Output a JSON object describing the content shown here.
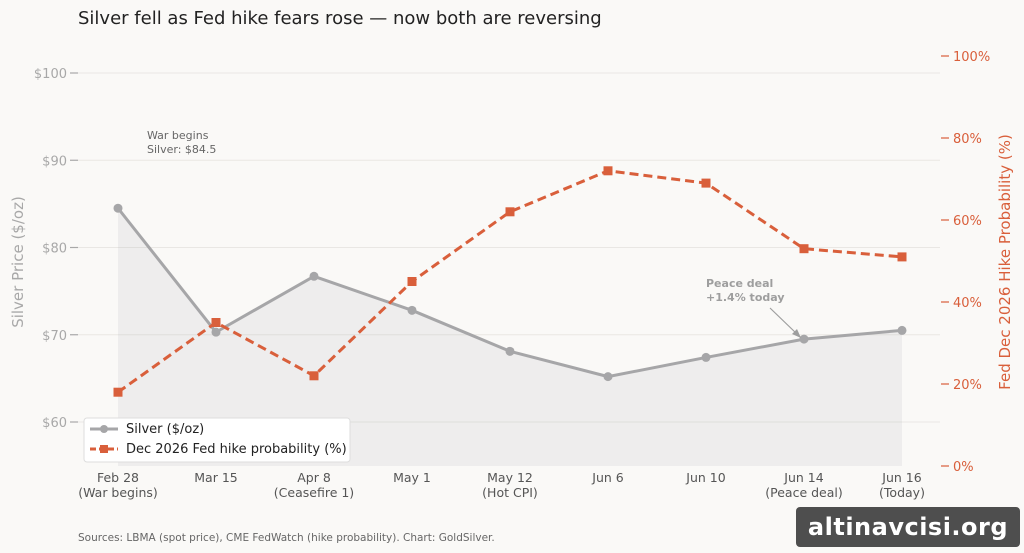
{
  "title": "Silver fell as Fed hike fears rose — now both are reversing",
  "source_note": "Sources: LBMA (spot price), CME FedWatch (hike probability). Chart: GoldSilver.",
  "watermark": "altinavcisi.org",
  "annotations": {
    "war_line1": "War begins",
    "war_line2": "Silver: $84.5",
    "peace_line1": "Peace deal",
    "peace_line2": "+1.4% today"
  },
  "colors": {
    "silver": "#a6a6a8",
    "fed": "#d95f3b",
    "background": "#faf9f7"
  },
  "chart_data": {
    "type": "line",
    "title": "Silver fell as Fed hike fears rose — now both are reversing",
    "categories": [
      [
        "Feb 28",
        "(War begins)"
      ],
      [
        "Mar 15",
        ""
      ],
      [
        "Apr 8",
        "(Ceasefire 1)"
      ],
      [
        "May 1",
        ""
      ],
      [
        "May 12",
        "(Hot CPI)"
      ],
      [
        "Jun 6",
        ""
      ],
      [
        "Jun 10",
        ""
      ],
      [
        "Jun 14",
        "(Peace deal)"
      ],
      [
        "Jun 16",
        "(Today)"
      ]
    ],
    "ylabel_left": "Silver Price ($/oz)",
    "ylabel_right": "Fed Dec 2026 Hike Probability (%)",
    "ylim_left": [
      55,
      102
    ],
    "ylim_right": [
      0,
      100
    ],
    "yticks_left": [
      "$60",
      "$70",
      "$80",
      "$90",
      "$100"
    ],
    "yticks_left_values": [
      60,
      70,
      80,
      90,
      100
    ],
    "yticks_right": [
      "0%",
      "20%",
      "40%",
      "60%",
      "80%",
      "100%"
    ],
    "yticks_right_values": [
      0,
      20,
      40,
      60,
      80,
      100
    ],
    "grid": true,
    "legend_position": "bottom-left",
    "series": [
      {
        "name": "Silver ($/oz)",
        "axis": "left",
        "style": "solid-circle",
        "values": [
          84.5,
          70.3,
          76.7,
          72.8,
          68.1,
          65.2,
          67.4,
          69.5,
          70.5
        ]
      },
      {
        "name": "Dec 2026 Fed hike probability (%)",
        "axis": "right",
        "style": "dashed-square",
        "values": [
          18,
          35,
          22,
          45,
          62,
          72,
          69,
          53,
          51
        ]
      }
    ]
  }
}
